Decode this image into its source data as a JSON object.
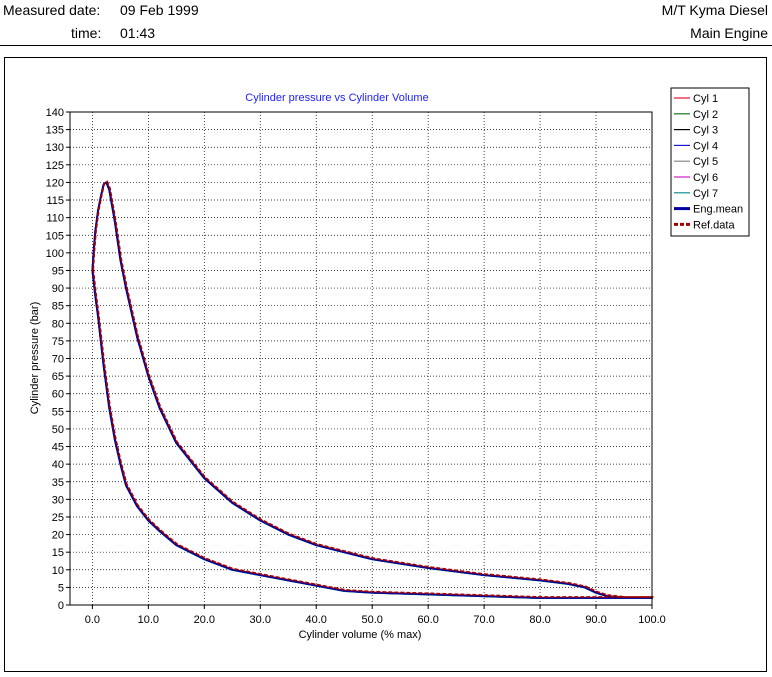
{
  "header": {
    "measured_date_label": "Measured date:",
    "measured_date_value": "09 Feb 1999",
    "time_label": "time:",
    "time_value": "01:43",
    "vessel": "M/T Kyma Diesel",
    "engine": "Main Engine"
  },
  "chart_data": {
    "type": "line",
    "title": "Cylinder pressure vs Cylinder Volume",
    "xlabel": "Cylinder volume (% max)",
    "ylabel": "Cylinder pressure (bar)",
    "xlim": [
      -4,
      100
    ],
    "ylim": [
      0,
      140
    ],
    "xticks": [
      0,
      10,
      20,
      30,
      40,
      50,
      60,
      70,
      80,
      90,
      100
    ],
    "xtick_labels": [
      "0.0",
      "10.0",
      "20.0",
      "30.0",
      "40.0",
      "50.0",
      "60.0",
      "70.0",
      "80.0",
      "90.0",
      "100.0"
    ],
    "yticks": [
      0,
      5,
      10,
      15,
      20,
      25,
      30,
      35,
      40,
      45,
      50,
      55,
      60,
      65,
      70,
      75,
      80,
      85,
      90,
      95,
      100,
      105,
      110,
      115,
      120,
      125,
      130,
      135,
      140
    ],
    "grid": true,
    "legend_position": "top-right outside",
    "series": [
      {
        "name": "Cyl 1",
        "color": "#e8102a"
      },
      {
        "name": "Cyl 2",
        "color": "#1a7a1a"
      },
      {
        "name": "Cyl 3",
        "color": "#000000"
      },
      {
        "name": "Cyl 4",
        "color": "#1a1ad0"
      },
      {
        "name": "Cyl 5",
        "color": "#8a8a8a"
      },
      {
        "name": "Cyl 6",
        "color": "#d020c8"
      },
      {
        "name": "Cyl 7",
        "color": "#109090"
      },
      {
        "name": "Eng.mean",
        "color": "#0000a0"
      },
      {
        "name": "Ref.data",
        "color": "#a00000"
      }
    ],
    "curve": {
      "x": [
        0,
        0.2,
        0.5,
        1.0,
        1.5,
        2.0,
        2.5,
        3.0,
        4.0,
        5.0,
        6.0,
        8.0,
        10.0,
        12.0,
        15.0,
        20.0,
        25.0,
        30.0,
        35.0,
        40.0,
        45.0,
        50.0,
        60.0,
        70.0,
        80.0,
        85.0,
        88.0,
        90.0,
        92.0,
        95.0,
        100.0,
        95.0,
        90.0,
        80.0,
        70.0,
        60.0,
        50.0,
        45.0,
        40.0,
        35.0,
        30.0,
        25.0,
        20.0,
        15.0,
        12.0,
        10.0,
        8.0,
        6.0,
        5.0,
        4.0,
        3.0,
        2.0,
        1.5,
        1.0,
        0.5,
        0.0
      ],
      "y": [
        95,
        100,
        106,
        112,
        116,
        119.5,
        120,
        118,
        109,
        98,
        90,
        76,
        65,
        56,
        46,
        36,
        29,
        24,
        20,
        17,
        15,
        13,
        10.5,
        8.5,
        7,
        6,
        5,
        3.5,
        2.5,
        2,
        2,
        2,
        2,
        2,
        2.5,
        3,
        3.5,
        4,
        5.5,
        7,
        8.5,
        10,
        13,
        17,
        21,
        24,
        28,
        34,
        40,
        47,
        56,
        68,
        75,
        82,
        88,
        95
      ]
    }
  }
}
